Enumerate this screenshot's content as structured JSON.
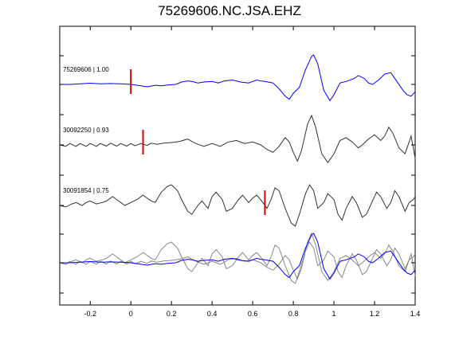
{
  "chart_data": {
    "type": "line",
    "title": "75269606.NC.JSA.EHZ",
    "xlim": [
      -0.35,
      1.4
    ],
    "xticks": [
      -0.2,
      0,
      0.2,
      0.4,
      0.6,
      0.8,
      1,
      1.2,
      1.4
    ],
    "xtick_labels": [
      "-0.2",
      "0",
      "0.2",
      "0.4",
      "0.6",
      "0.8",
      "1",
      "1.2",
      "1.4"
    ],
    "xlabel": "",
    "ylabel": "",
    "grid": false,
    "legend": "none",
    "traces": [
      {
        "label": "75269606 | 1.00",
        "color": "#0000ff",
        "pick_time": 0.0,
        "points": [
          [
            -0.35,
            0
          ],
          [
            -0.3,
            0
          ],
          [
            -0.25,
            0.02
          ],
          [
            -0.2,
            0.04
          ],
          [
            -0.15,
            0.02
          ],
          [
            -0.1,
            0.03
          ],
          [
            -0.05,
            0.02
          ],
          [
            0,
            0
          ],
          [
            0.05,
            -0.05
          ],
          [
            0.08,
            -0.08
          ],
          [
            0.12,
            -0.03
          ],
          [
            0.15,
            -0.05
          ],
          [
            0.18,
            -0.02
          ],
          [
            0.22,
            0
          ],
          [
            0.25,
            0.08
          ],
          [
            0.28,
            0.12
          ],
          [
            0.3,
            0.1
          ],
          [
            0.33,
            0.05
          ],
          [
            0.36,
            0.08
          ],
          [
            0.4,
            0.1
          ],
          [
            0.43,
            0.05
          ],
          [
            0.46,
            0.12
          ],
          [
            0.5,
            0.15
          ],
          [
            0.54,
            0.08
          ],
          [
            0.58,
            0.05
          ],
          [
            0.6,
            0.1
          ],
          [
            0.62,
            0.15
          ],
          [
            0.64,
            0.12
          ],
          [
            0.66,
            0.1
          ],
          [
            0.7,
            0.05
          ],
          [
            0.73,
            -0.15
          ],
          [
            0.76,
            -0.4
          ],
          [
            0.78,
            -0.5
          ],
          [
            0.8,
            -0.3
          ],
          [
            0.83,
            -0.1
          ],
          [
            0.86,
            0.5
          ],
          [
            0.89,
            0.95
          ],
          [
            0.9,
            1.0
          ],
          [
            0.92,
            0.7
          ],
          [
            0.95,
            -0.2
          ],
          [
            0.98,
            -0.55
          ],
          [
            1.0,
            -0.35
          ],
          [
            1.03,
            0.05
          ],
          [
            1.06,
            0.1
          ],
          [
            1.1,
            0.2
          ],
          [
            1.12,
            0.3
          ],
          [
            1.15,
            0.2
          ],
          [
            1.17,
            0.05
          ],
          [
            1.19,
            0
          ],
          [
            1.22,
            0.15
          ],
          [
            1.25,
            0.35
          ],
          [
            1.28,
            0.4
          ],
          [
            1.31,
            0.1
          ],
          [
            1.34,
            -0.2
          ],
          [
            1.36,
            -0.35
          ],
          [
            1.38,
            -0.4
          ],
          [
            1.4,
            -0.25
          ]
        ]
      },
      {
        "label": "30092250 | 0.93",
        "color": "#333333",
        "pick_time": 0.06,
        "points": [
          [
            -0.35,
            0
          ],
          [
            -0.32,
            -0.05
          ],
          [
            -0.3,
            0.05
          ],
          [
            -0.27,
            -0.05
          ],
          [
            -0.25,
            0.05
          ],
          [
            -0.22,
            -0.05
          ],
          [
            -0.2,
            0.05
          ],
          [
            -0.17,
            -0.05
          ],
          [
            -0.15,
            0.05
          ],
          [
            -0.12,
            -0.04
          ],
          [
            -0.1,
            0.06
          ],
          [
            -0.07,
            -0.04
          ],
          [
            -0.05,
            0.05
          ],
          [
            -0.02,
            -0.04
          ],
          [
            0,
            0.05
          ],
          [
            0.02,
            -0.03
          ],
          [
            0.05,
            0.05
          ],
          [
            0.08,
            -0.02
          ],
          [
            0.1,
            0.06
          ],
          [
            0.13,
            0.02
          ],
          [
            0.16,
            0.06
          ],
          [
            0.2,
            0.08
          ],
          [
            0.24,
            0.12
          ],
          [
            0.28,
            0.2
          ],
          [
            0.3,
            0.12
          ],
          [
            0.32,
            0.05
          ],
          [
            0.36,
            -0.05
          ],
          [
            0.4,
            0.05
          ],
          [
            0.44,
            -0.05
          ],
          [
            0.48,
            0.1
          ],
          [
            0.52,
            0.15
          ],
          [
            0.56,
            0.05
          ],
          [
            0.6,
            0.1
          ],
          [
            0.64,
            0
          ],
          [
            0.67,
            -0.15
          ],
          [
            0.7,
            -0.25
          ],
          [
            0.73,
            -0.05
          ],
          [
            0.76,
            0.25
          ],
          [
            0.78,
            0.1
          ],
          [
            0.8,
            -0.25
          ],
          [
            0.82,
            -0.55
          ],
          [
            0.84,
            -0.2
          ],
          [
            0.87,
            0.7
          ],
          [
            0.89,
            1.0
          ],
          [
            0.91,
            0.6
          ],
          [
            0.94,
            -0.3
          ],
          [
            0.97,
            -0.6
          ],
          [
            1.0,
            -0.3
          ],
          [
            1.03,
            0.15
          ],
          [
            1.06,
            0.25
          ],
          [
            1.09,
            0.1
          ],
          [
            1.12,
            -0.1
          ],
          [
            1.14,
            0
          ],
          [
            1.17,
            0.2
          ],
          [
            1.2,
            0.35
          ],
          [
            1.23,
            0.15
          ],
          [
            1.25,
            0.3
          ],
          [
            1.27,
            0.6
          ],
          [
            1.29,
            0.4
          ],
          [
            1.32,
            -0.1
          ],
          [
            1.35,
            -0.3
          ],
          [
            1.37,
            0.1
          ],
          [
            1.38,
            0.3
          ],
          [
            1.4,
            -0.45
          ]
        ]
      },
      {
        "label": "30091854 | 0.75",
        "color": "#333333",
        "pick_time": 0.66,
        "points": [
          [
            -0.35,
            0
          ],
          [
            -0.32,
            -0.05
          ],
          [
            -0.29,
            0.05
          ],
          [
            -0.27,
            0.1
          ],
          [
            -0.24,
            0
          ],
          [
            -0.22,
            0.1
          ],
          [
            -0.2,
            0.15
          ],
          [
            -0.17,
            0.05
          ],
          [
            -0.14,
            0.1
          ],
          [
            -0.12,
            0.15
          ],
          [
            -0.09,
            0.3
          ],
          [
            -0.06,
            0.15
          ],
          [
            -0.03,
            0
          ],
          [
            0,
            0.1
          ],
          [
            0.03,
            0.2
          ],
          [
            0.06,
            0.35
          ],
          [
            0.1,
            0.15
          ],
          [
            0.12,
            0.1
          ],
          [
            0.15,
            0.45
          ],
          [
            0.18,
            0.65
          ],
          [
            0.2,
            0.7
          ],
          [
            0.23,
            0.5
          ],
          [
            0.25,
            0.2
          ],
          [
            0.28,
            -0.2
          ],
          [
            0.3,
            -0.3
          ],
          [
            0.33,
            0
          ],
          [
            0.35,
            0.15
          ],
          [
            0.38,
            -0.1
          ],
          [
            0.4,
            0.3
          ],
          [
            0.42,
            0.45
          ],
          [
            0.45,
            0.2
          ],
          [
            0.47,
            -0.2
          ],
          [
            0.5,
            -0.1
          ],
          [
            0.53,
            0.2
          ],
          [
            0.55,
            0.35
          ],
          [
            0.58,
            0.1
          ],
          [
            0.6,
            0.25
          ],
          [
            0.62,
            0.35
          ],
          [
            0.65,
            0.1
          ],
          [
            0.67,
            -0.1
          ],
          [
            0.69,
            0.2
          ],
          [
            0.71,
            0.6
          ],
          [
            0.73,
            0.5
          ],
          [
            0.76,
            -0.1
          ],
          [
            0.79,
            -0.6
          ],
          [
            0.81,
            -0.7
          ],
          [
            0.83,
            -0.3
          ],
          [
            0.86,
            0.4
          ],
          [
            0.88,
            0.7
          ],
          [
            0.9,
            0.5
          ],
          [
            0.92,
            -0.1
          ],
          [
            0.95,
            0.1
          ],
          [
            0.97,
            0.4
          ],
          [
            1.0,
            0.2
          ],
          [
            1.02,
            -0.3
          ],
          [
            1.04,
            -0.5
          ],
          [
            1.06,
            -0.1
          ],
          [
            1.09,
            0.3
          ],
          [
            1.11,
            0.1
          ],
          [
            1.14,
            -0.4
          ],
          [
            1.16,
            -0.3
          ],
          [
            1.18,
            0
          ],
          [
            1.21,
            0.45
          ],
          [
            1.23,
            0.3
          ],
          [
            1.26,
            -0.1
          ],
          [
            1.28,
            0.1
          ],
          [
            1.3,
            0.5
          ],
          [
            1.32,
            0.3
          ],
          [
            1.35,
            -0.2
          ],
          [
            1.37,
            0.1
          ],
          [
            1.39,
            0.2
          ],
          [
            1.4,
            0.3
          ]
        ]
      }
    ]
  }
}
